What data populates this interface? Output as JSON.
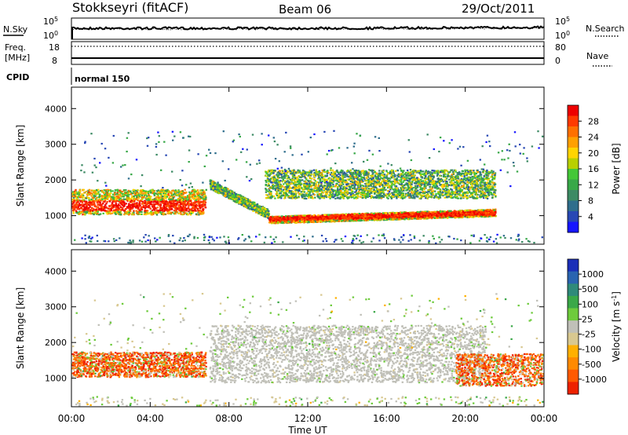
{
  "header": {
    "station": "Stokkseyri (fitACF)",
    "beam": "Beam 06",
    "date": "29/Oct/2011"
  },
  "nsky_panel": {
    "label_left": "N.Sky",
    "label_right": "N.Search",
    "ticks_left": [
      "10^5",
      "10^0"
    ],
    "ticks_right": [
      "10^5",
      "10^0"
    ]
  },
  "freq_panel": {
    "label_line1": "Freq.",
    "label_line2": "[MHz]",
    "label_right": "Nave",
    "ticks_left": [
      "18",
      "8"
    ],
    "ticks_right": [
      "80",
      "0"
    ]
  },
  "cpid_panel": {
    "label": "CPID",
    "value": "normal 150"
  },
  "chart_data": [
    {
      "type": "heatmap",
      "quantity": "Power",
      "ylabel": "Slant Range [km]",
      "ylim": [
        200,
        4600
      ],
      "yticks": [
        "1000",
        "2000",
        "3000",
        "4000"
      ],
      "xlim": [
        "00:00",
        "24:00"
      ],
      "colorbar": {
        "label": "Power [dB]",
        "ticks": [
          "4",
          "8",
          "12",
          "16",
          "20",
          "24",
          "28"
        ],
        "colors": [
          "#1515ff",
          "#2848b4",
          "#2f6e8c",
          "#3c8a64",
          "#38a848",
          "#44c838",
          "#b8d000",
          "#ffd400",
          "#ffa000",
          "#ff7000",
          "#ff3a00",
          "#ee0000"
        ]
      },
      "bands": [
        {
          "label": "E/low F region echoes",
          "start_h": 0.0,
          "end_h": 6.8,
          "range_km": [
            1050,
            1750
          ],
          "level": "strong"
        },
        {
          "label": "descending band",
          "start_h": 7.0,
          "end_h": 10.0,
          "range_km": [
            1900,
            1050
          ],
          "level": "moderate"
        },
        {
          "label": "main band",
          "start_h": 10.0,
          "end_h": 21.5,
          "range_km": [
            880,
            1100
          ],
          "level": "strong"
        },
        {
          "label": "upper band",
          "start_h": 9.8,
          "end_h": 21.5,
          "range_km": [
            1500,
            2300
          ],
          "level": "moderate"
        }
      ]
    },
    {
      "type": "heatmap",
      "quantity": "Velocity",
      "ylabel": "Slant Range [km]",
      "ylim": [
        200,
        4600
      ],
      "yticks": [
        "1000",
        "2000",
        "3000",
        "4000"
      ],
      "xlabel": "Time UT",
      "xticks": [
        "00:00",
        "04:00",
        "08:00",
        "12:00",
        "16:00",
        "20:00",
        "00:00"
      ],
      "colorbar": {
        "label": "Velocity [m s^-1]",
        "ticks": [
          "1000",
          "500",
          "100",
          "25",
          "-25",
          "-100",
          "-500",
          "-1000"
        ],
        "colors": [
          "#1b2fb8",
          "#2a64b0",
          "#2f8a7a",
          "#3aa848",
          "#6ecb3c",
          "#c0c0b8",
          "#d8c890",
          "#ffb000",
          "#ff8a00",
          "#ff5a00",
          "#ee2200"
        ]
      },
      "bands": [
        {
          "label": "negative velocity echoes",
          "start_h": 0.0,
          "end_h": 6.8,
          "range_km": [
            1050,
            1750
          ],
          "level": "-500"
        },
        {
          "label": "ground scatter",
          "start_h": 7.0,
          "end_h": 21.0,
          "range_km": [
            900,
            2500
          ],
          "level": "0"
        },
        {
          "label": "late negative echoes",
          "start_h": 19.5,
          "end_h": 24.0,
          "range_km": [
            800,
            1700
          ],
          "level": "-500"
        }
      ]
    }
  ]
}
